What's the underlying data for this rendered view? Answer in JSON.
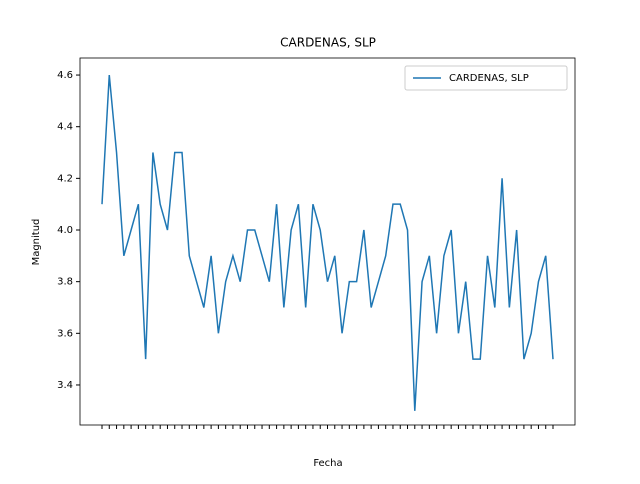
{
  "chart_data": {
    "type": "line",
    "title": "CARDENAS, SLP",
    "x_label": "Fecha",
    "y_label": "Magnitud",
    "categories": [
      null,
      null,
      null,
      null,
      null,
      null,
      null,
      null,
      null,
      null,
      null,
      null,
      null,
      null,
      null,
      null,
      null,
      null,
      null,
      null,
      null,
      null,
      null,
      null,
      null,
      null,
      null,
      null,
      null,
      null,
      null,
      null,
      null,
      null,
      null,
      null,
      null,
      null,
      null,
      null,
      null,
      null,
      null,
      null,
      null,
      null,
      null,
      null,
      null,
      null,
      null,
      null,
      null,
      null,
      null,
      null,
      null,
      null,
      null,
      null,
      null,
      null,
      null
    ],
    "series": [
      {
        "name": "CARDENAS, SLP",
        "color": "#1f77b4",
        "values": [
          4.1,
          4.6,
          4.3,
          3.9,
          4.0,
          4.1,
          3.5,
          4.3,
          4.1,
          4.0,
          4.3,
          4.3,
          3.9,
          3.8,
          3.7,
          3.9,
          3.6,
          3.8,
          3.9,
          3.8,
          4.0,
          4.0,
          3.9,
          3.8,
          4.1,
          3.7,
          4.0,
          4.1,
          3.7,
          4.1,
          4.0,
          3.8,
          3.9,
          3.6,
          3.8,
          3.8,
          4.0,
          3.7,
          3.8,
          3.9,
          4.1,
          4.1,
          4.0,
          3.3,
          3.8,
          3.9,
          3.6,
          3.9,
          4.0,
          3.6,
          3.8,
          3.5,
          3.5,
          3.9,
          3.7,
          4.2,
          3.7,
          4.0,
          3.5,
          3.6,
          3.8,
          3.9,
          3.5
        ]
      }
    ],
    "ylim": [
      3.245,
      4.666
    ],
    "yticks": [
      3.4,
      3.6,
      3.8,
      {
        "value": 4,
        "label": "4.0"
      },
      4.2,
      4.4,
      4.6
    ],
    "legend": "upper right"
  }
}
